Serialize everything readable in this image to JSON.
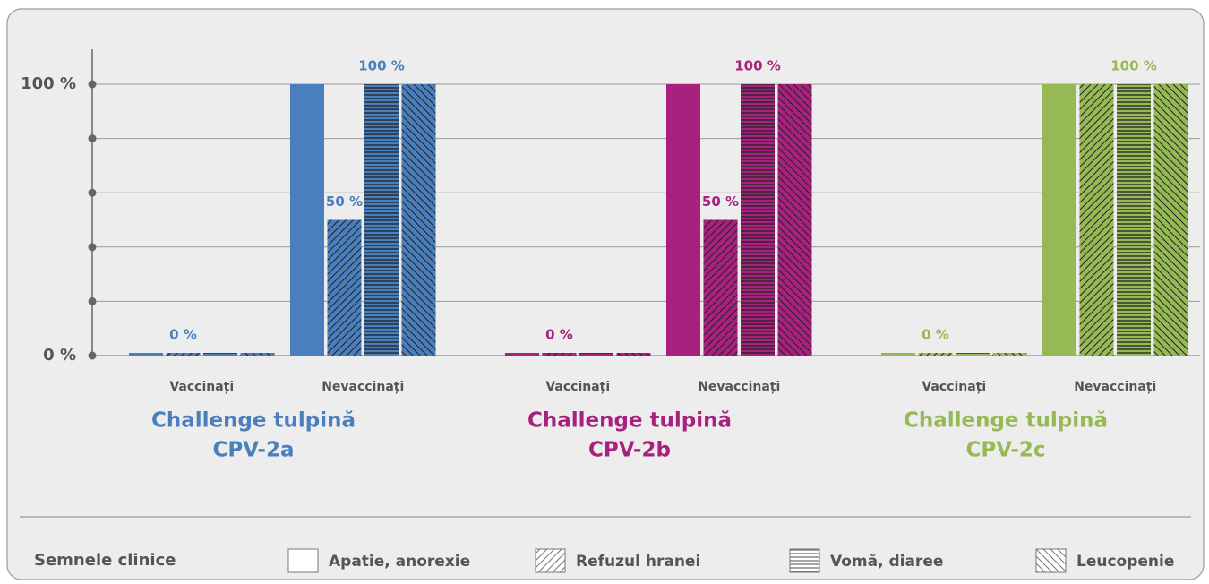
{
  "chart_data": {
    "type": "bar",
    "ylim": [
      0,
      100
    ],
    "yticks": [
      {
        "value": 0,
        "label": "0 %"
      },
      {
        "value": 20
      },
      {
        "value": 40
      },
      {
        "value": 60
      },
      {
        "value": 80
      },
      {
        "value": 100,
        "label": "100 %"
      }
    ],
    "grid": true,
    "legend_title": "Semnele clinice",
    "series": [
      {
        "name": "Apatie, anorexie",
        "pattern": "none"
      },
      {
        "name": "Refuzul hranei",
        "pattern": "diagonal-up"
      },
      {
        "name": "Vomă, diaree",
        "pattern": "horizontal"
      },
      {
        "name": "Leucopenie",
        "pattern": "diagonal-down"
      }
    ],
    "panels": [
      {
        "title": "Challenge tulpină",
        "strain": "CPV-2a",
        "color": "#4a7fbd",
        "groups": [
          {
            "name": "Vaccinați",
            "values": [
              0,
              0,
              0,
              0
            ],
            "value_labels": [
              null,
              "0 %",
              null,
              null
            ]
          },
          {
            "name": "Nevaccinați",
            "values": [
              100,
              50,
              100,
              100
            ],
            "value_labels": [
              null,
              "50 %",
              "100 %",
              null
            ]
          }
        ]
      },
      {
        "title": "Challenge tulpină",
        "strain": "CPV-2b",
        "color": "#a8217f",
        "groups": [
          {
            "name": "Vaccinați",
            "values": [
              0,
              0,
              0,
              0
            ],
            "value_labels": [
              null,
              "0 %",
              null,
              null
            ]
          },
          {
            "name": "Nevaccinați",
            "values": [
              100,
              50,
              100,
              100
            ],
            "value_labels": [
              null,
              "50 %",
              "100 %",
              null
            ]
          }
        ]
      },
      {
        "title": "Challenge tulpină",
        "strain": "CPV-2c",
        "color": "#96b955",
        "groups": [
          {
            "name": "Vaccinați",
            "values": [
              0,
              0,
              0,
              0
            ],
            "value_labels": [
              null,
              "0 %",
              null,
              null
            ]
          },
          {
            "name": "Nevaccinați",
            "values": [
              100,
              100,
              100,
              100
            ],
            "value_labels": [
              null,
              null,
              "100 %",
              null
            ]
          }
        ]
      }
    ]
  }
}
